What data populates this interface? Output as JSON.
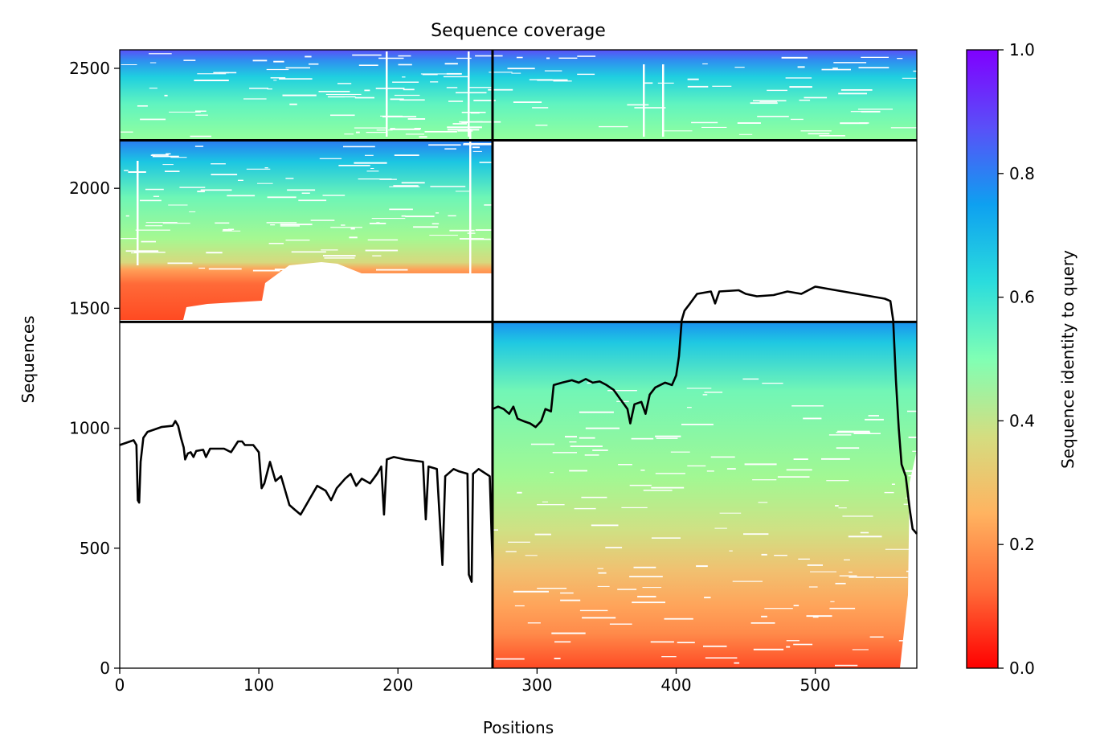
{
  "chart_data": {
    "type": "heatmap",
    "title": "Sequence coverage",
    "xlabel": "Positions",
    "ylabel": "Sequences",
    "xlim": [
      0,
      573
    ],
    "ylim": [
      0,
      2577
    ],
    "x_ticks": [
      0,
      100,
      200,
      300,
      400,
      500
    ],
    "y_ticks": [
      0,
      500,
      1000,
      1500,
      2000,
      2500
    ],
    "grid": false,
    "colorbar": {
      "label": "Sequence identity to query",
      "range": [
        0.0,
        1.0
      ],
      "ticks": [
        "0.0",
        "0.2",
        "0.4",
        "0.6",
        "0.8",
        "1.0"
      ],
      "colormap": "rainbow_r",
      "colors": [
        "#ff0000",
        "#ff6a37",
        "#ffb360",
        "#d4dd80",
        "#80ffb4",
        "#2adcdd",
        "#0ea0f0",
        "#5a4ff8",
        "#8000ff"
      ]
    },
    "domain_boundaries": {
      "x": 268,
      "y": [
        1443,
        2200
      ]
    },
    "blocks": [
      {
        "name": "top-left",
        "x": [
          0,
          268
        ],
        "y": [
          2200,
          2577
        ],
        "identity_range": [
          0.38,
          0.88
        ]
      },
      {
        "name": "top-right",
        "x": [
          268,
          573
        ],
        "y": [
          2200,
          2577
        ],
        "identity_range": [
          0.45,
          0.88
        ]
      },
      {
        "name": "middle-left",
        "x": [
          0,
          268
        ],
        "y": [
          1443,
          2200
        ],
        "identity_range": [
          0.12,
          0.86
        ]
      },
      {
        "name": "middle-right",
        "x": [
          268,
          573
        ],
        "y": [
          1443,
          2200
        ],
        "identity_range": null
      },
      {
        "name": "bottom-left",
        "x": [
          0,
          268
        ],
        "y": [
          0,
          1443
        ],
        "identity_range": null
      },
      {
        "name": "bottom-right",
        "x": [
          268,
          573
        ],
        "y": [
          0,
          1443
        ],
        "identity_range": [
          0.1,
          0.87
        ]
      }
    ],
    "coverage_line": {
      "color": "#000000",
      "points": [
        [
          0,
          930
        ],
        [
          5,
          940
        ],
        [
          10,
          950
        ],
        [
          12,
          930
        ],
        [
          13,
          700
        ],
        [
          14,
          690
        ],
        [
          15,
          860
        ],
        [
          17,
          960
        ],
        [
          20,
          985
        ],
        [
          25,
          995
        ],
        [
          30,
          1005
        ],
        [
          38,
          1010
        ],
        [
          40,
          1030
        ],
        [
          42,
          1010
        ],
        [
          44,
          960
        ],
        [
          46,
          920
        ],
        [
          47,
          870
        ],
        [
          49,
          895
        ],
        [
          51,
          900
        ],
        [
          53,
          880
        ],
        [
          55,
          905
        ],
        [
          60,
          910
        ],
        [
          62,
          880
        ],
        [
          65,
          915
        ],
        [
          75,
          915
        ],
        [
          80,
          900
        ],
        [
          85,
          945
        ],
        [
          88,
          945
        ],
        [
          90,
          930
        ],
        [
          96,
          930
        ],
        [
          100,
          900
        ],
        [
          102,
          750
        ],
        [
          104,
          770
        ],
        [
          108,
          860
        ],
        [
          112,
          780
        ],
        [
          116,
          800
        ],
        [
          120,
          720
        ],
        [
          122,
          680
        ],
        [
          126,
          660
        ],
        [
          130,
          640
        ],
        [
          134,
          680
        ],
        [
          138,
          720
        ],
        [
          142,
          760
        ],
        [
          148,
          740
        ],
        [
          152,
          700
        ],
        [
          156,
          750
        ],
        [
          162,
          790
        ],
        [
          166,
          810
        ],
        [
          170,
          760
        ],
        [
          174,
          790
        ],
        [
          180,
          770
        ],
        [
          185,
          810
        ],
        [
          188,
          840
        ],
        [
          190,
          640
        ],
        [
          192,
          870
        ],
        [
          197,
          880
        ],
        [
          205,
          870
        ],
        [
          212,
          865
        ],
        [
          218,
          860
        ],
        [
          220,
          620
        ],
        [
          222,
          840
        ],
        [
          228,
          830
        ],
        [
          232,
          430
        ],
        [
          234,
          800
        ],
        [
          240,
          830
        ],
        [
          244,
          820
        ],
        [
          250,
          810
        ],
        [
          251,
          390
        ],
        [
          253,
          360
        ],
        [
          254,
          810
        ],
        [
          258,
          830
        ],
        [
          262,
          815
        ],
        [
          266,
          800
        ],
        [
          268,
          430
        ],
        [
          268,
          1080
        ],
        [
          272,
          1090
        ],
        [
          276,
          1080
        ],
        [
          280,
          1060
        ],
        [
          283,
          1090
        ],
        [
          286,
          1040
        ],
        [
          290,
          1030
        ],
        [
          295,
          1020
        ],
        [
          299,
          1005
        ],
        [
          303,
          1030
        ],
        [
          306,
          1080
        ],
        [
          310,
          1070
        ],
        [
          312,
          1180
        ],
        [
          318,
          1190
        ],
        [
          325,
          1200
        ],
        [
          330,
          1190
        ],
        [
          335,
          1205
        ],
        [
          340,
          1190
        ],
        [
          345,
          1195
        ],
        [
          350,
          1180
        ],
        [
          355,
          1160
        ],
        [
          360,
          1120
        ],
        [
          365,
          1080
        ],
        [
          367,
          1020
        ],
        [
          370,
          1100
        ],
        [
          375,
          1110
        ],
        [
          378,
          1060
        ],
        [
          381,
          1140
        ],
        [
          385,
          1170
        ],
        [
          392,
          1190
        ],
        [
          397,
          1180
        ],
        [
          400,
          1220
        ],
        [
          402,
          1300
        ],
        [
          404,
          1450
        ],
        [
          406,
          1490
        ],
        [
          410,
          1520
        ],
        [
          415,
          1560
        ],
        [
          425,
          1570
        ],
        [
          428,
          1520
        ],
        [
          431,
          1570
        ],
        [
          445,
          1575
        ],
        [
          450,
          1560
        ],
        [
          458,
          1550
        ],
        [
          470,
          1555
        ],
        [
          480,
          1570
        ],
        [
          490,
          1560
        ],
        [
          500,
          1590
        ],
        [
          510,
          1580
        ],
        [
          520,
          1570
        ],
        [
          530,
          1560
        ],
        [
          540,
          1550
        ],
        [
          550,
          1540
        ],
        [
          554,
          1530
        ],
        [
          556,
          1450
        ],
        [
          558,
          1200
        ],
        [
          560,
          1000
        ],
        [
          562,
          850
        ],
        [
          565,
          800
        ],
        [
          568,
          660
        ],
        [
          570,
          580
        ],
        [
          573,
          560
        ]
      ]
    }
  }
}
